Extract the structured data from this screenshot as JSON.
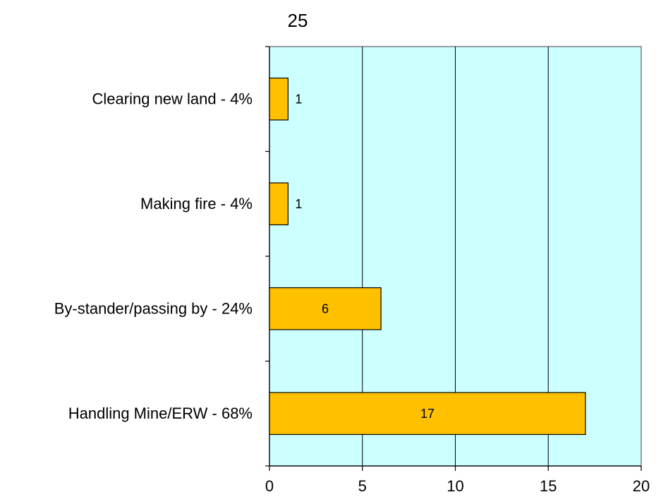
{
  "chart_data": {
    "type": "bar",
    "orientation": "horizontal",
    "title": "25",
    "categories": [
      "Clearing new land - 4%",
      "Making fire - 4%",
      "By-stander/passing by - 24%",
      "Handling Mine/ERW - 68%"
    ],
    "values": [
      1,
      1,
      6,
      17
    ],
    "data_labels": [
      "1",
      "1",
      "6",
      "17"
    ],
    "xlim": [
      0,
      20
    ],
    "xticks": [
      0,
      5,
      10,
      15,
      20
    ],
    "xlabel": "",
    "ylabel": "",
    "grid": "vertical",
    "legend": "none",
    "colors": {
      "bar_fill": "#ffc000",
      "bar_stroke": "#000000",
      "plot_background": "#ccffff",
      "gridline": "#000000"
    }
  }
}
